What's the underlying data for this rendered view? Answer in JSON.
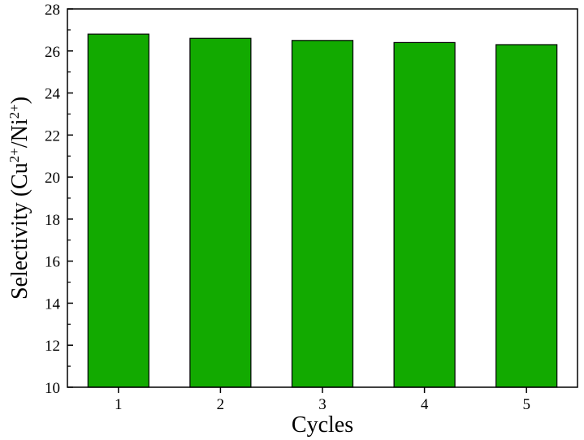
{
  "chart_data": {
    "type": "bar",
    "categories": [
      "1",
      "2",
      "3",
      "4",
      "5"
    ],
    "values": [
      26.8,
      26.6,
      26.5,
      26.4,
      26.3
    ],
    "ylim": [
      10,
      28
    ],
    "yticks": [
      10,
      12,
      14,
      16,
      18,
      20,
      22,
      24,
      26,
      28
    ],
    "title": "",
    "xlabel": "Cycles",
    "ylabel": {
      "prefix": "Selectivity (Cu",
      "sup1": "2+",
      "mid": "/Ni",
      "sup2": "2+",
      "suffix": ")"
    },
    "bar_color": "#12aa00",
    "bar_edge_color": "#000000",
    "grid": false,
    "legend": "none"
  }
}
